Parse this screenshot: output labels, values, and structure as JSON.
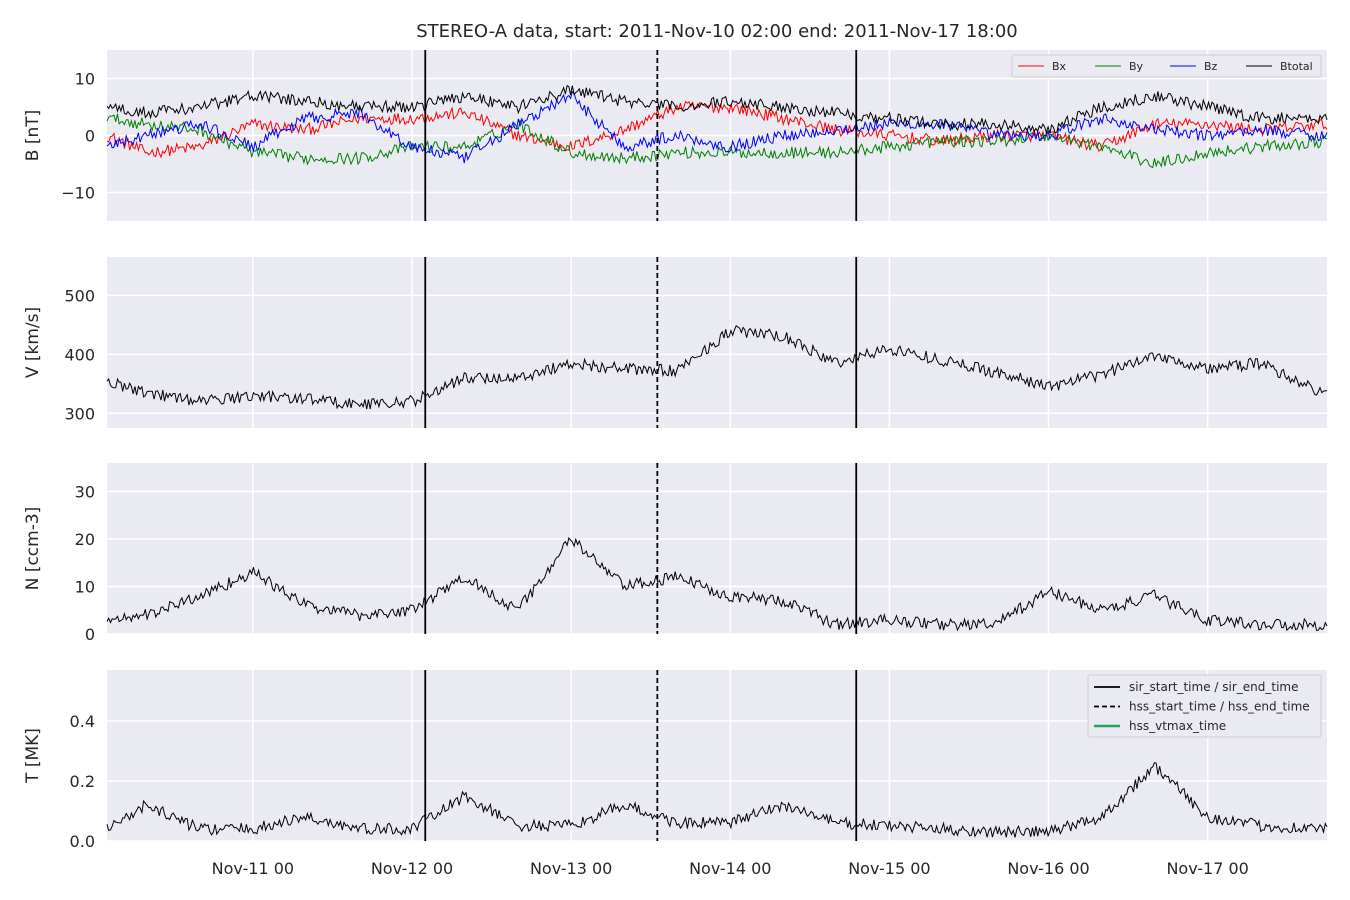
{
  "chart_data": {
    "type": "line",
    "title": "STEREO-A data, start: 2011-Nov-10 02:00  end: 2011-Nov-17 18:00",
    "x_range": [
      "2011-11-10T02:00",
      "2011-11-17T18:00"
    ],
    "x_ticks": [
      {
        "date": "2011-11-11T00:00",
        "label": "Nov-11 00"
      },
      {
        "date": "2011-11-12T00:00",
        "label": "Nov-12 00"
      },
      {
        "date": "2011-11-13T00:00",
        "label": "Nov-13 00"
      },
      {
        "date": "2011-11-14T00:00",
        "label": "Nov-14 00"
      },
      {
        "date": "2011-11-15T00:00",
        "label": "Nov-15 00"
      },
      {
        "date": "2011-11-16T00:00",
        "label": "Nov-16 00"
      },
      {
        "date": "2011-11-17T00:00",
        "label": "Nov-17 00"
      }
    ],
    "markers": {
      "sir_start_time": "2011-11-12T02:00",
      "hss_start_time": "2011-11-13T13:00",
      "sir_end_time": "2011-11-14T19:00"
    },
    "grid": true,
    "panels": [
      {
        "ylabel": "B [nT]",
        "ylim": [
          -15,
          15
        ],
        "yticks": [
          -10,
          0,
          10
        ],
        "legend_position": "top-right",
        "series": [
          {
            "name": "Bx",
            "color": "#ff0000",
            "keypoints": [
              [
                "2011-11-10T02:00",
                0
              ],
              [
                "2011-11-10T08:00",
                -3
              ],
              [
                "2011-11-10T16:00",
                -2
              ],
              [
                "2011-11-11T00:00",
                2
              ],
              [
                "2011-11-11T08:00",
                1
              ],
              [
                "2011-11-11T16:00",
                3
              ],
              [
                "2011-11-12T00:00",
                3
              ],
              [
                "2011-11-12T08:00",
                4
              ],
              [
                "2011-11-12T16:00",
                0
              ],
              [
                "2011-11-13T00:00",
                -2
              ],
              [
                "2011-11-13T08:00",
                1
              ],
              [
                "2011-11-13T16:00",
                5
              ],
              [
                "2011-11-14T00:00",
                5
              ],
              [
                "2011-11-14T08:00",
                3
              ],
              [
                "2011-11-14T16:00",
                1
              ],
              [
                "2011-11-15T00:00",
                0
              ],
              [
                "2011-11-15T08:00",
                -1
              ],
              [
                "2011-11-15T16:00",
                0
              ],
              [
                "2011-11-16T00:00",
                0
              ],
              [
                "2011-11-16T08:00",
                -2
              ],
              [
                "2011-11-16T16:00",
                2
              ],
              [
                "2011-11-17T00:00",
                2
              ],
              [
                "2011-11-17T08:00",
                1
              ],
              [
                "2011-11-17T18:00",
                2
              ]
            ]
          },
          {
            "name": "By",
            "color": "#008000",
            "keypoints": [
              [
                "2011-11-10T02:00",
                3
              ],
              [
                "2011-11-10T08:00",
                2
              ],
              [
                "2011-11-10T16:00",
                1
              ],
              [
                "2011-11-11T00:00",
                -3
              ],
              [
                "2011-11-11T08:00",
                -4
              ],
              [
                "2011-11-11T16:00",
                -4
              ],
              [
                "2011-11-12T00:00",
                -2
              ],
              [
                "2011-11-12T08:00",
                -2
              ],
              [
                "2011-11-12T16:00",
                2
              ],
              [
                "2011-11-13T00:00",
                -3
              ],
              [
                "2011-11-13T08:00",
                -4
              ],
              [
                "2011-11-13T16:00",
                -3
              ],
              [
                "2011-11-14T00:00",
                -3
              ],
              [
                "2011-11-14T08:00",
                -3
              ],
              [
                "2011-11-14T16:00",
                -3
              ],
              [
                "2011-11-15T00:00",
                -2
              ],
              [
                "2011-11-15T08:00",
                -1
              ],
              [
                "2011-11-15T16:00",
                -1
              ],
              [
                "2011-11-16T00:00",
                0
              ],
              [
                "2011-11-16T08:00",
                -2
              ],
              [
                "2011-11-16T16:00",
                -5
              ],
              [
                "2011-11-17T00:00",
                -3
              ],
              [
                "2011-11-17T08:00",
                -2
              ],
              [
                "2011-11-17T18:00",
                -1
              ]
            ]
          },
          {
            "name": "Bz",
            "color": "#0000ff",
            "keypoints": [
              [
                "2011-11-10T02:00",
                -2
              ],
              [
                "2011-11-10T08:00",
                0
              ],
              [
                "2011-11-10T16:00",
                2
              ],
              [
                "2011-11-11T00:00",
                -2
              ],
              [
                "2011-11-11T08:00",
                3
              ],
              [
                "2011-11-11T16:00",
                4
              ],
              [
                "2011-11-12T00:00",
                -2
              ],
              [
                "2011-11-12T08:00",
                -4
              ],
              [
                "2011-11-12T16:00",
                2
              ],
              [
                "2011-11-13T00:00",
                7
              ],
              [
                "2011-11-13T08:00",
                -2
              ],
              [
                "2011-11-13T16:00",
                0
              ],
              [
                "2011-11-14T00:00",
                -2
              ],
              [
                "2011-11-14T08:00",
                0
              ],
              [
                "2011-11-14T16:00",
                1
              ],
              [
                "2011-11-15T00:00",
                2
              ],
              [
                "2011-11-15T08:00",
                2
              ],
              [
                "2011-11-15T16:00",
                0
              ],
              [
                "2011-11-16T00:00",
                0
              ],
              [
                "2011-11-16T08:00",
                3
              ],
              [
                "2011-11-16T16:00",
                1
              ],
              [
                "2011-11-17T00:00",
                0
              ],
              [
                "2011-11-17T08:00",
                1
              ],
              [
                "2011-11-17T18:00",
                0
              ]
            ]
          },
          {
            "name": "Btotal",
            "color": "#000000",
            "keypoints": [
              [
                "2011-11-10T02:00",
                5
              ],
              [
                "2011-11-10T08:00",
                4
              ],
              [
                "2011-11-10T16:00",
                5
              ],
              [
                "2011-11-11T00:00",
                7
              ],
              [
                "2011-11-11T08:00",
                6
              ],
              [
                "2011-11-11T16:00",
                5
              ],
              [
                "2011-11-12T00:00",
                5
              ],
              [
                "2011-11-12T08:00",
                7
              ],
              [
                "2011-11-12T16:00",
                5
              ],
              [
                "2011-11-13T00:00",
                8
              ],
              [
                "2011-11-13T08:00",
                6
              ],
              [
                "2011-11-13T16:00",
                5
              ],
              [
                "2011-11-14T00:00",
                6
              ],
              [
                "2011-11-14T08:00",
                5
              ],
              [
                "2011-11-14T16:00",
                4
              ],
              [
                "2011-11-15T00:00",
                3
              ],
              [
                "2011-11-15T08:00",
                2
              ],
              [
                "2011-11-15T16:00",
                2
              ],
              [
                "2011-11-16T00:00",
                1
              ],
              [
                "2011-11-16T08:00",
                5
              ],
              [
                "2011-11-16T16:00",
                7
              ],
              [
                "2011-11-17T00:00",
                5
              ],
              [
                "2011-11-17T08:00",
                3
              ],
              [
                "2011-11-17T18:00",
                3
              ]
            ]
          }
        ]
      },
      {
        "ylabel": "V [km/s]",
        "ylim": [
          275,
          565
        ],
        "yticks": [
          300,
          400,
          500
        ],
        "series": [
          {
            "name": "",
            "color": "#000000",
            "keypoints": [
              [
                "2011-11-10T02:00",
                355
              ],
              [
                "2011-11-10T08:00",
                335
              ],
              [
                "2011-11-10T16:00",
                320
              ],
              [
                "2011-11-11T00:00",
                330
              ],
              [
                "2011-11-11T08:00",
                325
              ],
              [
                "2011-11-11T16:00",
                315
              ],
              [
                "2011-11-12T00:00",
                320
              ],
              [
                "2011-11-12T08:00",
                360
              ],
              [
                "2011-11-12T16:00",
                360
              ],
              [
                "2011-11-13T00:00",
                385
              ],
              [
                "2011-11-13T08:00",
                375
              ],
              [
                "2011-11-13T16:00",
                372
              ],
              [
                "2011-11-14T00:00",
                440
              ],
              [
                "2011-11-14T08:00",
                430
              ],
              [
                "2011-11-14T16:00",
                385
              ],
              [
                "2011-11-15T00:00",
                410
              ],
              [
                "2011-11-15T08:00",
                390
              ],
              [
                "2011-11-15T16:00",
                370
              ],
              [
                "2011-11-16T00:00",
                345
              ],
              [
                "2011-11-16T08:00",
                365
              ],
              [
                "2011-11-16T16:00",
                400
              ],
              [
                "2011-11-17T00:00",
                375
              ],
              [
                "2011-11-17T08:00",
                385
              ],
              [
                "2011-11-17T18:00",
                330
              ]
            ]
          }
        ]
      },
      {
        "ylabel": "N [ccm-3]",
        "ylim": [
          0,
          36
        ],
        "yticks": [
          0,
          10,
          20,
          30
        ],
        "series": [
          {
            "name": "",
            "color": "#000000",
            "keypoints": [
              [
                "2011-11-10T02:00",
                3
              ],
              [
                "2011-11-10T08:00",
                4
              ],
              [
                "2011-11-10T16:00",
                8
              ],
              [
                "2011-11-11T00:00",
                13
              ],
              [
                "2011-11-11T08:00",
                6
              ],
              [
                "2011-11-11T16:00",
                4
              ],
              [
                "2011-11-12T00:00",
                5
              ],
              [
                "2011-11-12T08:00",
                12
              ],
              [
                "2011-11-12T16:00",
                5
              ],
              [
                "2011-11-13T00:00",
                20
              ],
              [
                "2011-11-13T08:00",
                10
              ],
              [
                "2011-11-13T16:00",
                12
              ],
              [
                "2011-11-14T00:00",
                8
              ],
              [
                "2011-11-14T08:00",
                7
              ],
              [
                "2011-11-14T16:00",
                2
              ],
              [
                "2011-11-15T00:00",
                3
              ],
              [
                "2011-11-15T08:00",
                2
              ],
              [
                "2011-11-15T16:00",
                2
              ],
              [
                "2011-11-16T00:00",
                9
              ],
              [
                "2011-11-16T08:00",
                5
              ],
              [
                "2011-11-16T16:00",
                8
              ],
              [
                "2011-11-17T00:00",
                3
              ],
              [
                "2011-11-17T08:00",
                2
              ],
              [
                "2011-11-17T18:00",
                2
              ]
            ]
          }
        ]
      },
      {
        "ylabel": "T [MK]",
        "ylim": [
          0,
          0.57
        ],
        "yticks": [
          0.0,
          0.2,
          0.4
        ],
        "tick_format": "1dp",
        "legend_position": "top-right",
        "legend_entries": [
          {
            "label": "sir_start_time / sir_end_time",
            "style": "solid",
            "color": "#000000"
          },
          {
            "label": "hss_start_time / hss_end_time",
            "style": "dashed",
            "color": "#000000"
          },
          {
            "label": "hss_vtmax_time",
            "style": "solid",
            "color": "#2ca25f"
          }
        ],
        "series": [
          {
            "name": "",
            "color": "#000000",
            "keypoints": [
              [
                "2011-11-10T02:00",
                0.04
              ],
              [
                "2011-11-10T08:00",
                0.12
              ],
              [
                "2011-11-10T16:00",
                0.04
              ],
              [
                "2011-11-11T00:00",
                0.04
              ],
              [
                "2011-11-11T08:00",
                0.08
              ],
              [
                "2011-11-11T16:00",
                0.04
              ],
              [
                "2011-11-12T00:00",
                0.04
              ],
              [
                "2011-11-12T08:00",
                0.15
              ],
              [
                "2011-11-12T16:00",
                0.05
              ],
              [
                "2011-11-13T00:00",
                0.05
              ],
              [
                "2011-11-13T08:00",
                0.12
              ],
              [
                "2011-11-13T16:00",
                0.06
              ],
              [
                "2011-11-14T00:00",
                0.06
              ],
              [
                "2011-11-14T08:00",
                0.12
              ],
              [
                "2011-11-14T16:00",
                0.06
              ],
              [
                "2011-11-15T00:00",
                0.05
              ],
              [
                "2011-11-15T08:00",
                0.04
              ],
              [
                "2011-11-15T16:00",
                0.03
              ],
              [
                "2011-11-16T00:00",
                0.03
              ],
              [
                "2011-11-16T08:00",
                0.08
              ],
              [
                "2011-11-16T16:00",
                0.25
              ],
              [
                "2011-11-17T00:00",
                0.08
              ],
              [
                "2011-11-17T08:00",
                0.05
              ],
              [
                "2011-11-17T18:00",
                0.04
              ]
            ]
          }
        ]
      }
    ]
  }
}
